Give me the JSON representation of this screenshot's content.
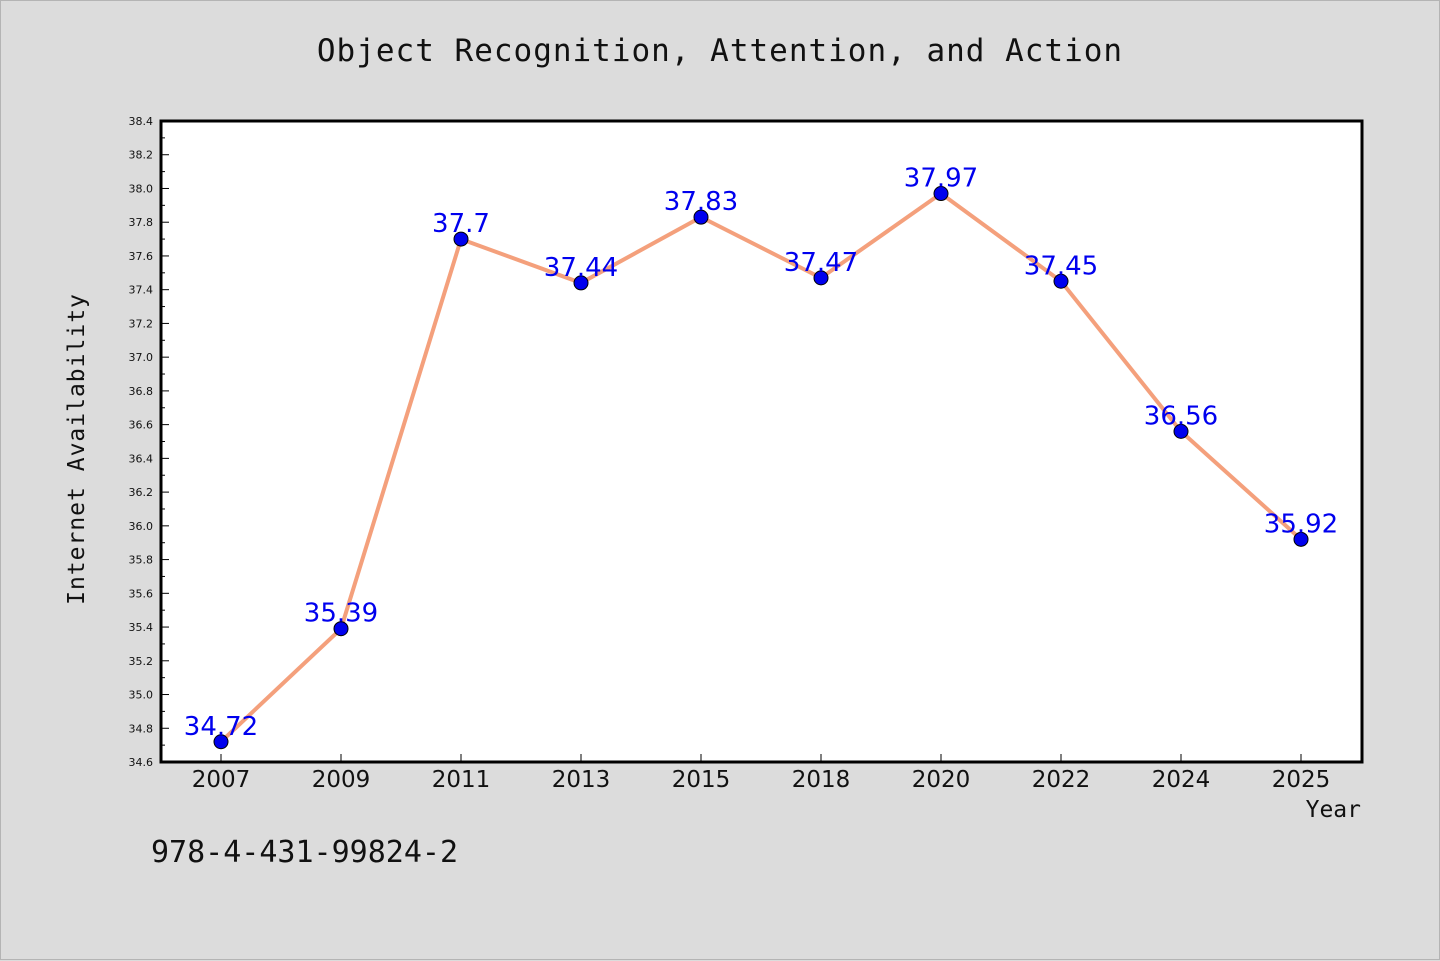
{
  "isbn": "978-4-431-99824-2",
  "chart_data": {
    "type": "line",
    "title": "Object Recognition, Attention, and Action",
    "xlabel": "Year",
    "ylabel": "Internet Availability",
    "categories": [
      "2007",
      "2009",
      "2011",
      "2013",
      "2015",
      "2018",
      "2020",
      "2022",
      "2024",
      "2025"
    ],
    "series": [
      {
        "values": [
          34.72,
          35.39,
          37.7,
          37.44,
          37.83,
          37.47,
          37.97,
          37.45,
          36.56,
          35.92
        ],
        "line_color": "#f4a07c",
        "marker_color": "#0000ee",
        "label_color": "#0000ee"
      }
    ],
    "data_labels": [
      "34.72",
      "35.39",
      "37.7",
      "37.44",
      "37.83",
      "37.47",
      "37.97",
      "37.45",
      "36.56",
      "35.92"
    ],
    "ylim": [
      34.6,
      38.4
    ],
    "yticks": [
      "34.6",
      "34.8",
      "35.0",
      "35.2",
      "35.4",
      "35.6",
      "35.8",
      "36.0",
      "36.2",
      "36.4",
      "36.6",
      "36.8",
      "37.0",
      "37.2",
      "37.4",
      "37.6",
      "37.8",
      "38.0",
      "38.2",
      "38.4"
    ],
    "grid": false,
    "legend": "none"
  }
}
